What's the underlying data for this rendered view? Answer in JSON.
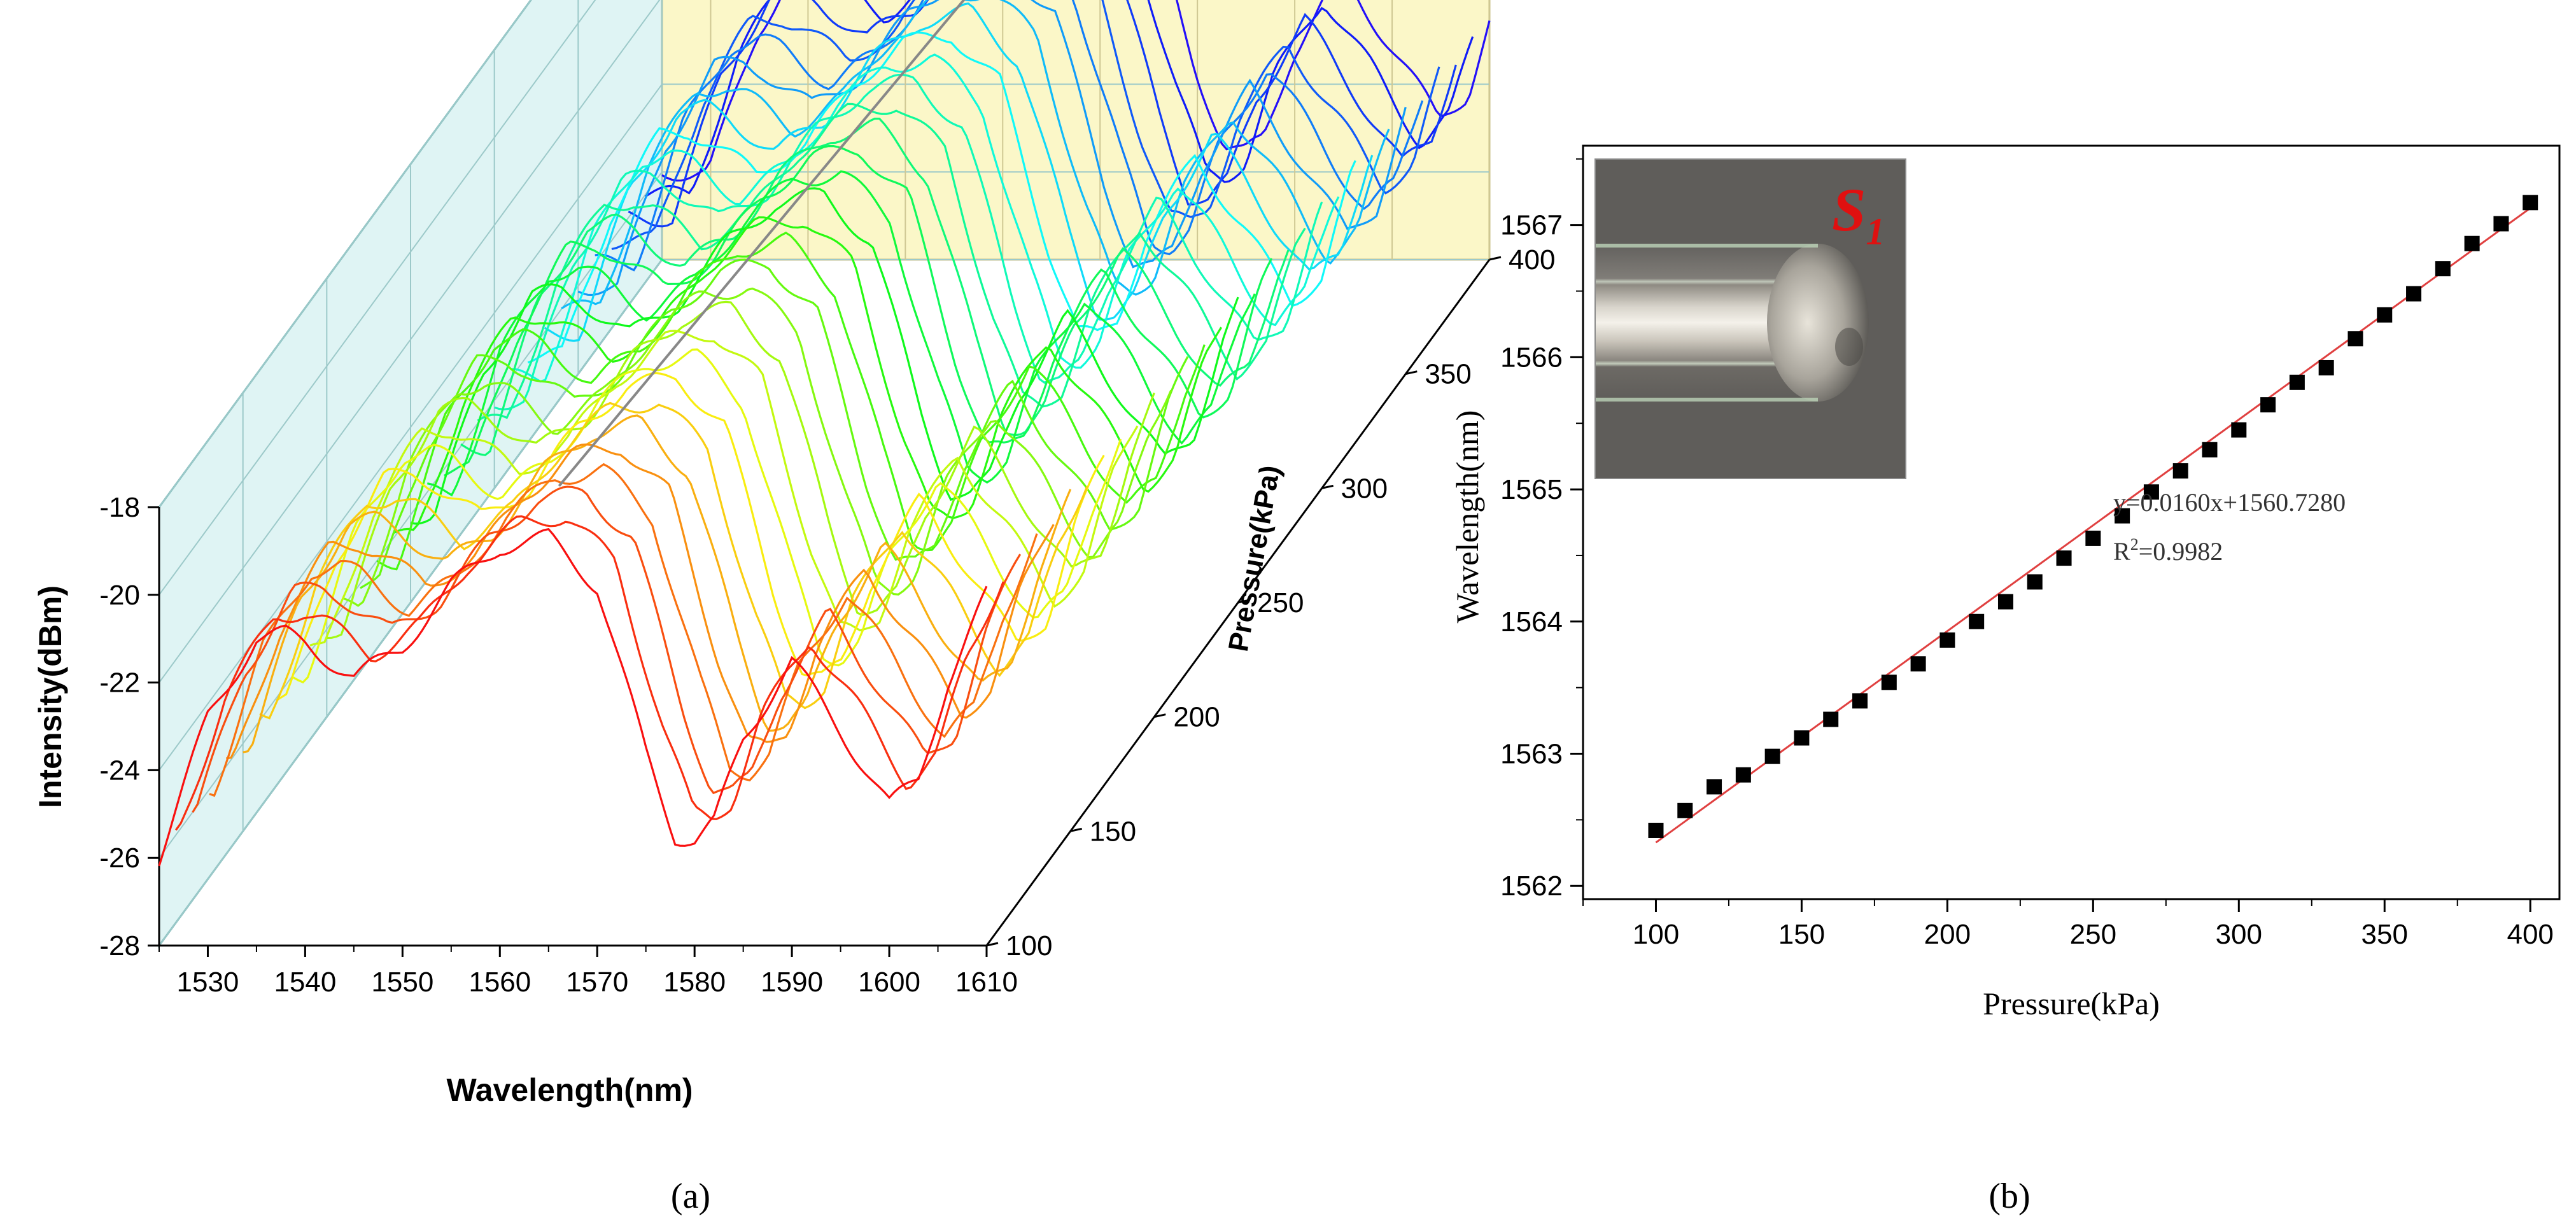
{
  "chart_data": [
    {
      "panel_label": "(a)",
      "type": "line",
      "view": "3d-waterfall",
      "xlabel": "Wavelength(nm)",
      "ylabel": "Intensity(dBm)",
      "zlabel": "Pressure(kPa)",
      "xlim": [
        1525,
        1610
      ],
      "ylim": [
        -28,
        -18
      ],
      "zlim": [
        100,
        400
      ],
      "x_ticks": [
        1530,
        1540,
        1550,
        1560,
        1570,
        1580,
        1590,
        1600,
        1610
      ],
      "y_ticks": [
        -28,
        -26,
        -24,
        -22,
        -20,
        -18
      ],
      "z_ticks": [
        400,
        350,
        300,
        250,
        200,
        150,
        100
      ],
      "series_pressures": [
        100,
        110,
        120,
        130,
        140,
        150,
        160,
        170,
        180,
        190,
        200,
        210,
        220,
        230,
        240,
        250,
        260,
        270,
        280,
        290,
        300,
        310,
        320,
        330,
        340,
        350,
        360,
        370,
        380,
        390,
        400
      ],
      "base_spectrum_100kPa": {
        "x": [
          1525,
          1530,
          1535,
          1538,
          1540,
          1545,
          1550,
          1555,
          1560,
          1565,
          1570,
          1575,
          1578,
          1580,
          1582,
          1585,
          1590,
          1595,
          1600,
          1603,
          1606,
          1610
        ],
        "y": [
          -26.0,
          -22.8,
          -21.0,
          -20.9,
          -21.1,
          -21.9,
          -21.2,
          -19.8,
          -18.9,
          -18.7,
          -19.8,
          -23.6,
          -25.5,
          -25.6,
          -25.2,
          -23.3,
          -21.5,
          -23.1,
          -24.8,
          -24.2,
          -22.0,
          -20.0
        ]
      },
      "peak_shift_nm_per_kPa": 0.016
    },
    {
      "panel_label": "(b)",
      "type": "scatter",
      "xlabel": "Pressure(kPa)",
      "ylabel": "Wavelength(nm)",
      "xlim": [
        75,
        410
      ],
      "ylim": [
        1561.9,
        1567.6
      ],
      "x_ticks": [
        100,
        150,
        200,
        250,
        300,
        350,
        400
      ],
      "y_ticks": [
        1562,
        1563,
        1564,
        1565,
        1566,
        1567
      ],
      "x": [
        100,
        110,
        120,
        130,
        140,
        150,
        160,
        170,
        180,
        190,
        200,
        210,
        220,
        230,
        240,
        250,
        260,
        270,
        280,
        290,
        300,
        310,
        320,
        330,
        340,
        350,
        360,
        370,
        380,
        390,
        400
      ],
      "y": [
        1562.42,
        1562.57,
        1562.75,
        1562.84,
        1562.98,
        1563.12,
        1563.26,
        1563.4,
        1563.54,
        1563.68,
        1563.86,
        1564.0,
        1564.15,
        1564.3,
        1564.48,
        1564.63,
        1564.8,
        1564.98,
        1565.14,
        1565.3,
        1565.45,
        1565.64,
        1565.81,
        1565.92,
        1566.14,
        1566.32,
        1566.48,
        1566.67,
        1566.86,
        1567.01,
        1567.17
      ],
      "fit": {
        "equation": "y=0.0160x+1560.7280",
        "r2_prefix": "R",
        "r2_sup": "2",
        "r2_value": "=0.9982",
        "slope": 0.016,
        "intercept": 1560.728
      },
      "inset_label": "S",
      "inset_label_sub": "1",
      "colors": {
        "markers": "#000000",
        "fit_line": "#e04040",
        "inset_label": "#e01010"
      }
    }
  ]
}
